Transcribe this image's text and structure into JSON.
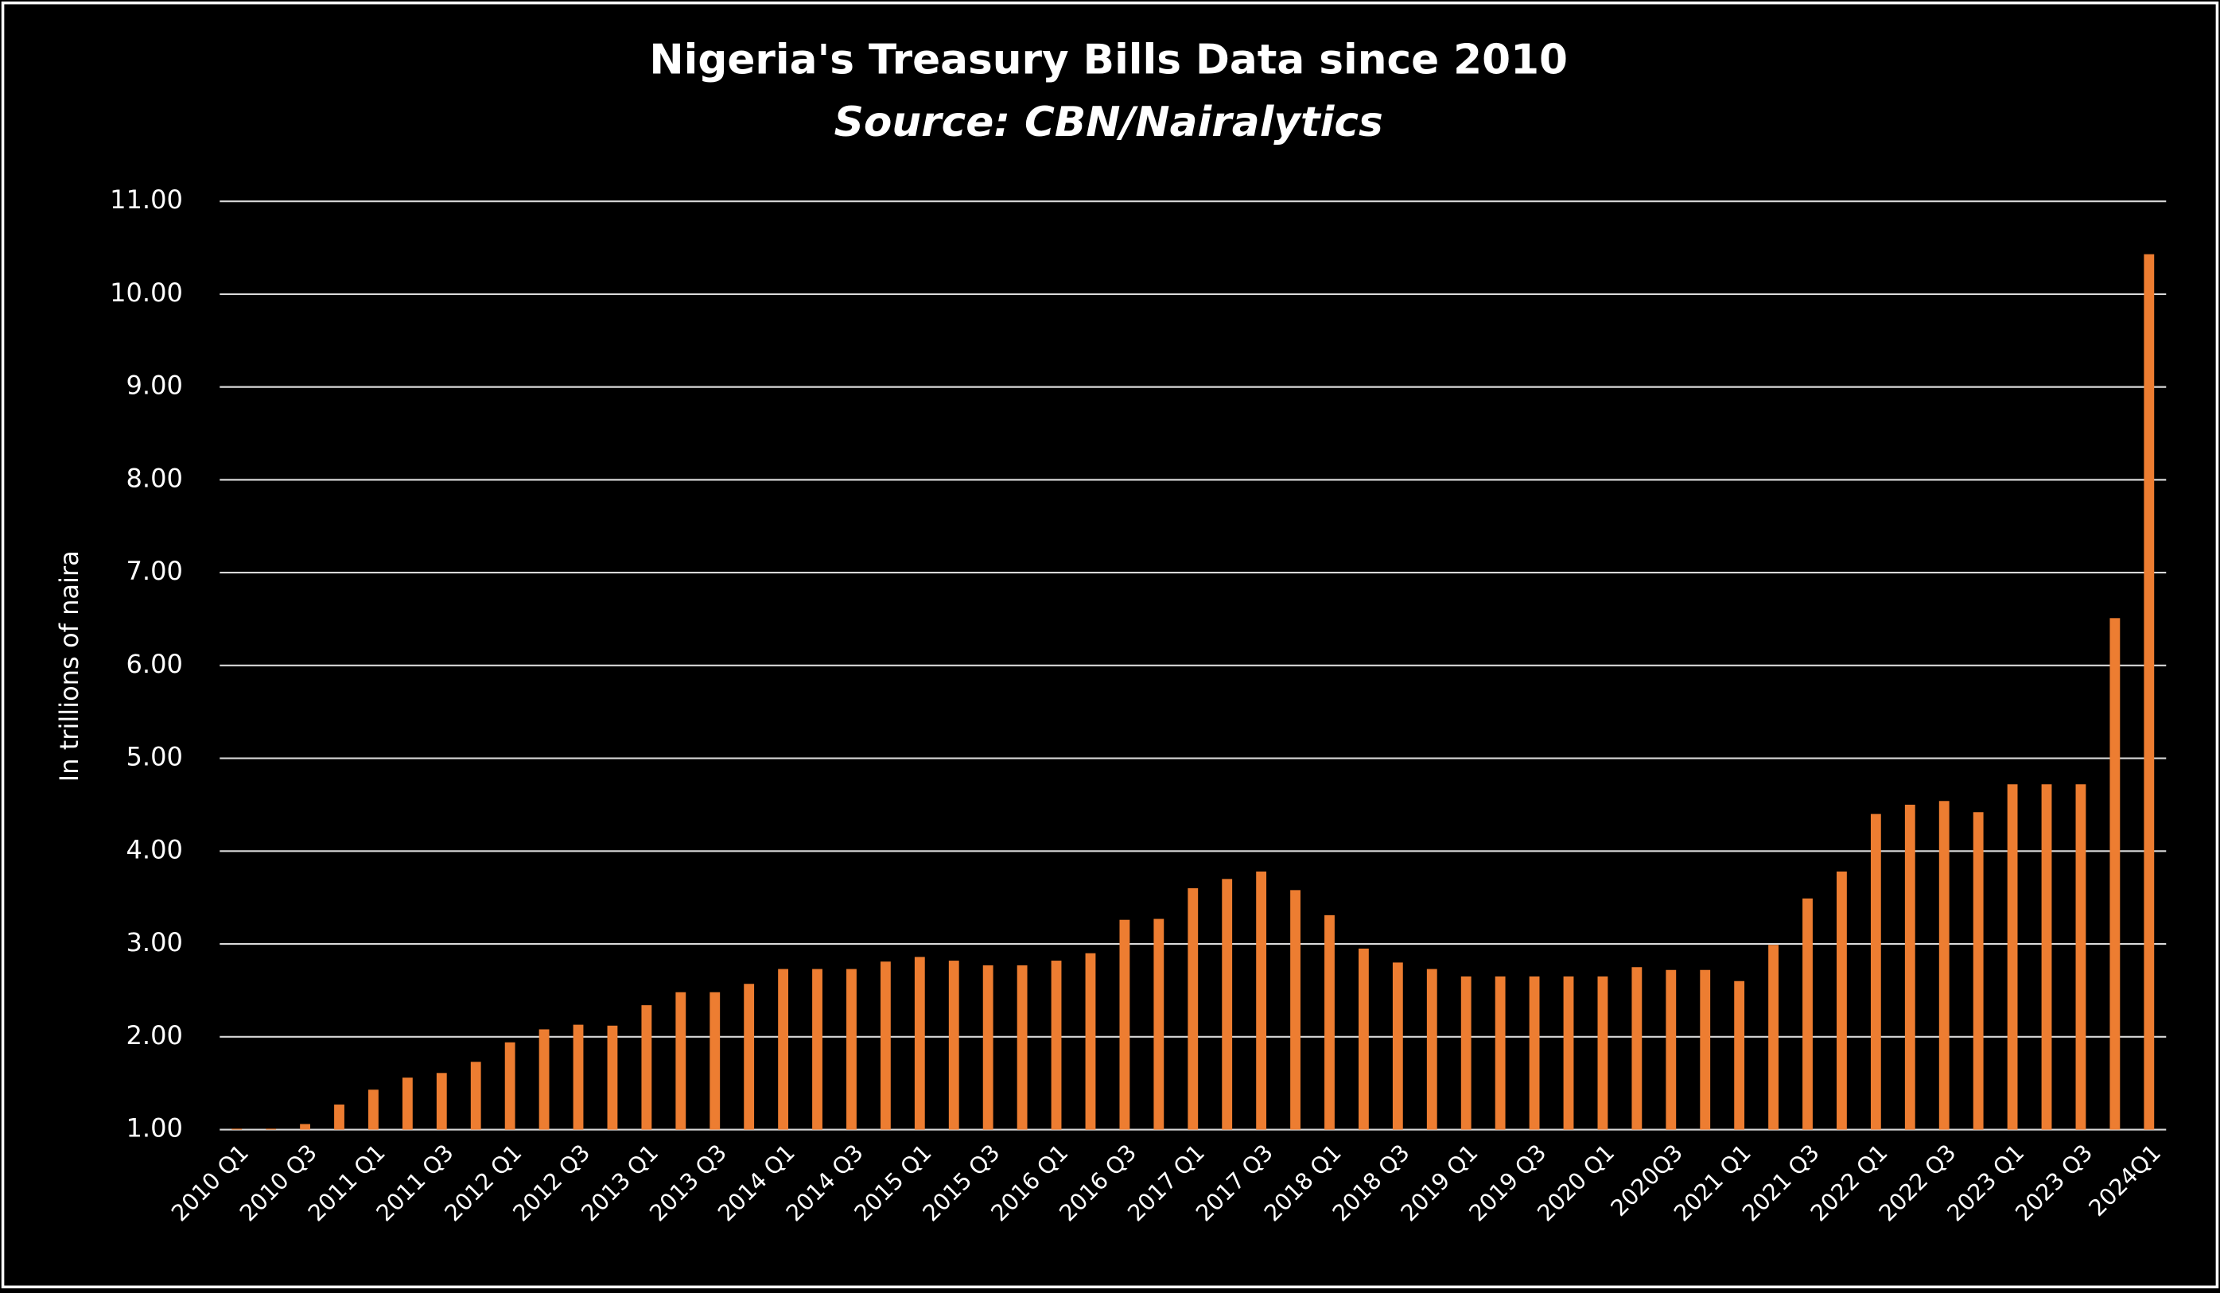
{
  "chart_data": {
    "type": "bar",
    "title": "Nigeria's Treasury Bills Data since 2010",
    "subtitle": "Source: CBN/Nairalytics",
    "y_label": "In trillions of naira",
    "categories": [
      "2010 Q1",
      null,
      "2010 Q3",
      null,
      "2011 Q1",
      null,
      "2011 Q3",
      null,
      "2012 Q1",
      null,
      "2012 Q3",
      null,
      "2013 Q1",
      null,
      "2013 Q3",
      null,
      "2014 Q1",
      null,
      "2014 Q3",
      null,
      "2015 Q1",
      null,
      "2015 Q3",
      null,
      "2016 Q1",
      null,
      "2016 Q3",
      null,
      "2017 Q1",
      null,
      "2017 Q3",
      null,
      "2018 Q1",
      null,
      "2018 Q3",
      null,
      "2019 Q1",
      null,
      "2019 Q3",
      null,
      "2020 Q1",
      null,
      "2020Q3",
      null,
      "2021 Q1",
      null,
      "2021 Q3",
      null,
      "2022 Q1",
      null,
      "2022 Q3",
      null,
      "2023 Q1",
      null,
      "2023 Q3",
      null,
      "2024Q1"
    ],
    "values": [
      1.01,
      1.01,
      1.06,
      1.27,
      1.43,
      1.56,
      1.61,
      1.73,
      1.94,
      2.08,
      2.13,
      2.12,
      2.34,
      2.48,
      2.48,
      2.57,
      2.73,
      2.73,
      2.73,
      2.81,
      2.86,
      2.82,
      2.77,
      2.77,
      2.82,
      2.9,
      3.26,
      3.27,
      3.6,
      3.7,
      3.78,
      3.58,
      3.31,
      2.95,
      2.8,
      2.73,
      2.65,
      2.65,
      2.65,
      2.65,
      2.65,
      2.75,
      2.72,
      2.72,
      2.6,
      2.99,
      3.49,
      3.78,
      4.4,
      4.5,
      4.54,
      4.42,
      4.72,
      4.72,
      4.72,
      6.51,
      10.43
    ],
    "color": "#ed7d31",
    "ylim": [
      1,
      11
    ],
    "yticks": [
      {
        "value": 1,
        "label": "1.00"
      },
      {
        "value": 2,
        "label": "2.00"
      },
      {
        "value": 3,
        "label": "3.00"
      },
      {
        "value": 4,
        "label": "4.00"
      },
      {
        "value": 5,
        "label": "5.00"
      },
      {
        "value": 6,
        "label": "6.00"
      },
      {
        "value": 7,
        "label": "7.00"
      },
      {
        "value": 8,
        "label": "8.00"
      },
      {
        "value": 9,
        "label": "9.00"
      },
      {
        "value": 10,
        "label": "10.00"
      },
      {
        "value": 11,
        "label": "11.00"
      }
    ],
    "grid": true
  }
}
